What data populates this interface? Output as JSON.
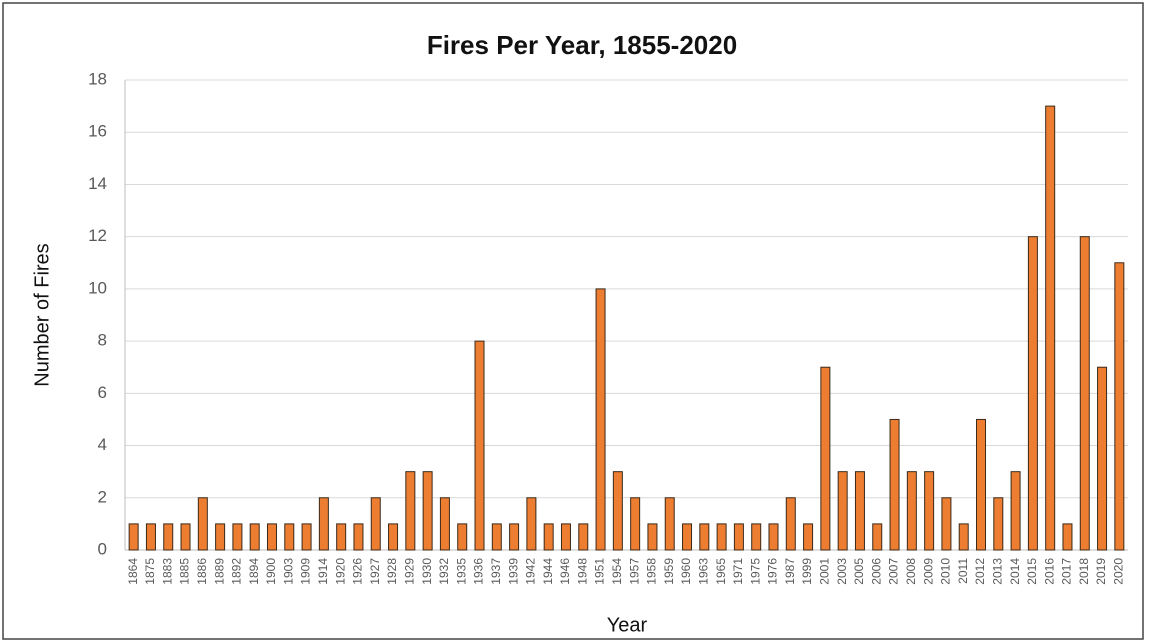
{
  "chart_data": {
    "type": "bar",
    "title": "Fires Per Year, 1855-2020",
    "x_label": "Year",
    "y_label": "Number of Fires",
    "categories": [
      "1864",
      "1875",
      "1883",
      "1885",
      "1886",
      "1889",
      "1892",
      "1894",
      "1900",
      "1903",
      "1909",
      "1914",
      "1920",
      "1926",
      "1927",
      "1928",
      "1929",
      "1930",
      "1932",
      "1935",
      "1936",
      "1937",
      "1939",
      "1942",
      "1944",
      "1946",
      "1948",
      "1951",
      "1954",
      "1957",
      "1958",
      "1959",
      "1960",
      "1963",
      "1965",
      "1971",
      "1975",
      "1976",
      "1987",
      "1999",
      "2001",
      "2003",
      "2005",
      "2006",
      "2007",
      "2008",
      "2009",
      "2010",
      "2011",
      "2012",
      "2013",
      "2014",
      "2015",
      "2016",
      "2017",
      "2018",
      "2019",
      "2020"
    ],
    "values": [
      1,
      1,
      1,
      1,
      2,
      1,
      1,
      1,
      1,
      1,
      1,
      2,
      1,
      1,
      2,
      1,
      3,
      3,
      2,
      1,
      8,
      1,
      1,
      2,
      1,
      1,
      1,
      10,
      3,
      2,
      1,
      2,
      1,
      1,
      1,
      1,
      1,
      1,
      2,
      1,
      7,
      3,
      3,
      1,
      5,
      3,
      3,
      2,
      1,
      5,
      2,
      3,
      12,
      17,
      1,
      12,
      7,
      11
    ],
    "color": "#ed7d31",
    "ylim": [
      0,
      18
    ],
    "yticks": [
      0,
      2,
      4,
      6,
      8,
      10,
      12,
      14,
      16,
      18
    ],
    "grid": true
  }
}
